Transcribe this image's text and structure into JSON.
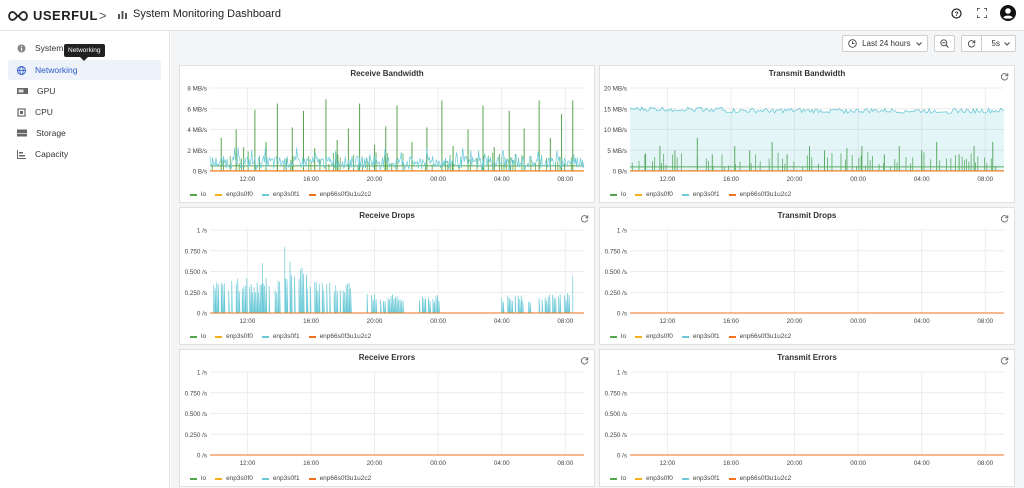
{
  "app": {
    "logo_text": "USERFUL",
    "crumb_separator": ">",
    "dashboard_title": "System Monitoring Dashboard"
  },
  "sidebar": {
    "tooltip": "Networking",
    "items": [
      {
        "label": "System",
        "icon": "info-icon"
      },
      {
        "label": "Networking",
        "icon": "globe-icon",
        "active": true
      },
      {
        "label": "GPU",
        "icon": "gpu-icon"
      },
      {
        "label": "CPU",
        "icon": "cpu-icon"
      },
      {
        "label": "Storage",
        "icon": "storage-icon"
      },
      {
        "label": "Capacity",
        "icon": "capacity-icon"
      }
    ]
  },
  "controls": {
    "time_range": "Last 24 hours",
    "refresh_interval": "5s"
  },
  "colors": {
    "lo": "#56a64b",
    "enp3s0f0": "#f2b01e",
    "enp3s0f1": "#6ccad8",
    "enp66s0f3u1u2c2": "#f2711c",
    "accent": "#2e5cc6"
  },
  "legend": [
    "lo",
    "enp3s0f0",
    "enp3s0f1",
    "enp66s0f3u1u2c2"
  ],
  "x_ticks": [
    "12:00",
    "16:00",
    "20:00",
    "00:00",
    "04:00",
    "08:00"
  ],
  "chart_data": [
    {
      "type": "line",
      "title": "Receive Bandwidth",
      "y_ticks": [
        "0 B/s",
        "2 MB/s",
        "4 MB/s",
        "6 MB/s",
        "8 MB/s"
      ],
      "ylim": [
        0,
        8
      ],
      "series": [
        {
          "name": "lo",
          "baseline": 0.5,
          "spikes": [
            [
              0.03,
              3.2
            ],
            [
              0.07,
              4.0
            ],
            [
              0.09,
              2.3
            ],
            [
              0.12,
              5.9
            ],
            [
              0.15,
              2.8
            ],
            [
              0.18,
              6.5
            ],
            [
              0.22,
              4.2
            ],
            [
              0.25,
              5.8
            ],
            [
              0.28,
              2.2
            ],
            [
              0.31,
              6.9
            ],
            [
              0.34,
              3.0
            ],
            [
              0.37,
              4.1
            ],
            [
              0.4,
              6.5
            ],
            [
              0.44,
              2.5
            ],
            [
              0.47,
              4.3
            ],
            [
              0.5,
              6.3
            ],
            [
              0.54,
              2.8
            ],
            [
              0.58,
              4.2
            ],
            [
              0.62,
              6.8
            ],
            [
              0.65,
              2.4
            ],
            [
              0.69,
              4.0
            ],
            [
              0.73,
              6.3
            ],
            [
              0.76,
              2.3
            ],
            [
              0.8,
              5.8
            ],
            [
              0.84,
              4.1
            ],
            [
              0.88,
              6.8
            ],
            [
              0.91,
              3.2
            ],
            [
              0.94,
              5.5
            ],
            [
              0.97,
              6.8
            ]
          ]
        },
        {
          "name": "enp3s0f0",
          "baseline": 0.02
        },
        {
          "name": "enp3s0f1",
          "baseline": 0.6,
          "noise": 1.2,
          "start": 0,
          "end": 1
        },
        {
          "name": "enp66s0f3u1u2c2",
          "baseline": 0.0
        }
      ]
    },
    {
      "type": "area",
      "title": "Transmit Bandwidth",
      "y_ticks": [
        "0 B/s",
        "5 MB/s",
        "10 MB/s",
        "15 MB/s",
        "20 MB/s"
      ],
      "ylim": [
        0,
        20
      ],
      "series": [
        {
          "name": "lo",
          "baseline": 1.0,
          "spikes": [
            [
              0.04,
              4
            ],
            [
              0.08,
              6
            ],
            [
              0.12,
              5
            ],
            [
              0.18,
              8
            ],
            [
              0.22,
              4
            ],
            [
              0.28,
              6
            ],
            [
              0.32,
              5
            ],
            [
              0.38,
              7
            ],
            [
              0.42,
              4
            ],
            [
              0.48,
              6
            ],
            [
              0.52,
              5
            ],
            [
              0.58,
              5.5
            ],
            [
              0.62,
              6
            ],
            [
              0.68,
              4
            ],
            [
              0.72,
              6
            ],
            [
              0.78,
              5
            ],
            [
              0.82,
              7
            ],
            [
              0.88,
              4
            ],
            [
              0.92,
              6
            ],
            [
              0.97,
              7
            ]
          ]
        },
        {
          "name": "enp3s0f0",
          "baseline": 0.05
        },
        {
          "name": "enp3s0f1",
          "baseline": 14.5,
          "noise": 0.6,
          "start": 0,
          "end": 1,
          "fill": true
        },
        {
          "name": "enp66s0f3u1u2c2",
          "baseline": 0.0
        }
      ]
    },
    {
      "type": "line",
      "title": "Receive Drops",
      "y_ticks": [
        "0 /s",
        "0.250 /s",
        "0.500 /s",
        "0.750 /s",
        "1 /s"
      ],
      "ylim": [
        0,
        1
      ],
      "series": [
        {
          "name": "lo",
          "baseline": 0.0
        },
        {
          "name": "enp3s0f0",
          "baseline": 0.0
        },
        {
          "name": "enp3s0f1",
          "baseline": 0.0,
          "bursts": [
            [
              0.01,
              0.21,
              0.35
            ],
            [
              0.21,
              0.26,
              0.55
            ],
            [
              0.26,
              0.38,
              0.35
            ],
            [
              0.42,
              0.52,
              0.2
            ],
            [
              0.56,
              0.62,
              0.18
            ],
            [
              0.78,
              0.86,
              0.18
            ],
            [
              0.88,
              0.97,
              0.2
            ]
          ],
          "peak": [
            [
              0.2,
              0.8
            ],
            [
              0.14,
              0.6
            ],
            [
              0.97,
              0.45
            ]
          ]
        },
        {
          "name": "enp66s0f3u1u2c2",
          "baseline": 0.0
        }
      ]
    },
    {
      "type": "line",
      "title": "Transmit Drops",
      "y_ticks": [
        "0 /s",
        "0.250 /s",
        "0.500 /s",
        "0.750 /s",
        "1 /s"
      ],
      "ylim": [
        0,
        1
      ],
      "series": [
        {
          "name": "lo",
          "baseline": 0.0
        },
        {
          "name": "enp3s0f0",
          "baseline": 0.0
        },
        {
          "name": "enp3s0f1",
          "baseline": 0.0
        },
        {
          "name": "enp66s0f3u1u2c2",
          "baseline": 0.0
        }
      ]
    },
    {
      "type": "line",
      "title": "Receive Errors",
      "y_ticks": [
        "0 /s",
        "0.250 /s",
        "0.500 /s",
        "0.750 /s",
        "1 /s"
      ],
      "ylim": [
        0,
        1
      ],
      "series": [
        {
          "name": "lo",
          "baseline": 0.0
        },
        {
          "name": "enp3s0f0",
          "baseline": 0.0
        },
        {
          "name": "enp3s0f1",
          "baseline": 0.0
        },
        {
          "name": "enp66s0f3u1u2c2",
          "baseline": 0.0
        }
      ]
    },
    {
      "type": "line",
      "title": "Transmit Errors",
      "y_ticks": [
        "0 /s",
        "0.250 /s",
        "0.500 /s",
        "0.750 /s",
        "1 /s"
      ],
      "ylim": [
        0,
        1
      ],
      "series": [
        {
          "name": "lo",
          "baseline": 0.0
        },
        {
          "name": "enp3s0f0",
          "baseline": 0.0
        },
        {
          "name": "enp3s0f1",
          "baseline": 0.0
        },
        {
          "name": "enp66s0f3u1u2c2",
          "baseline": 0.0
        }
      ]
    }
  ]
}
